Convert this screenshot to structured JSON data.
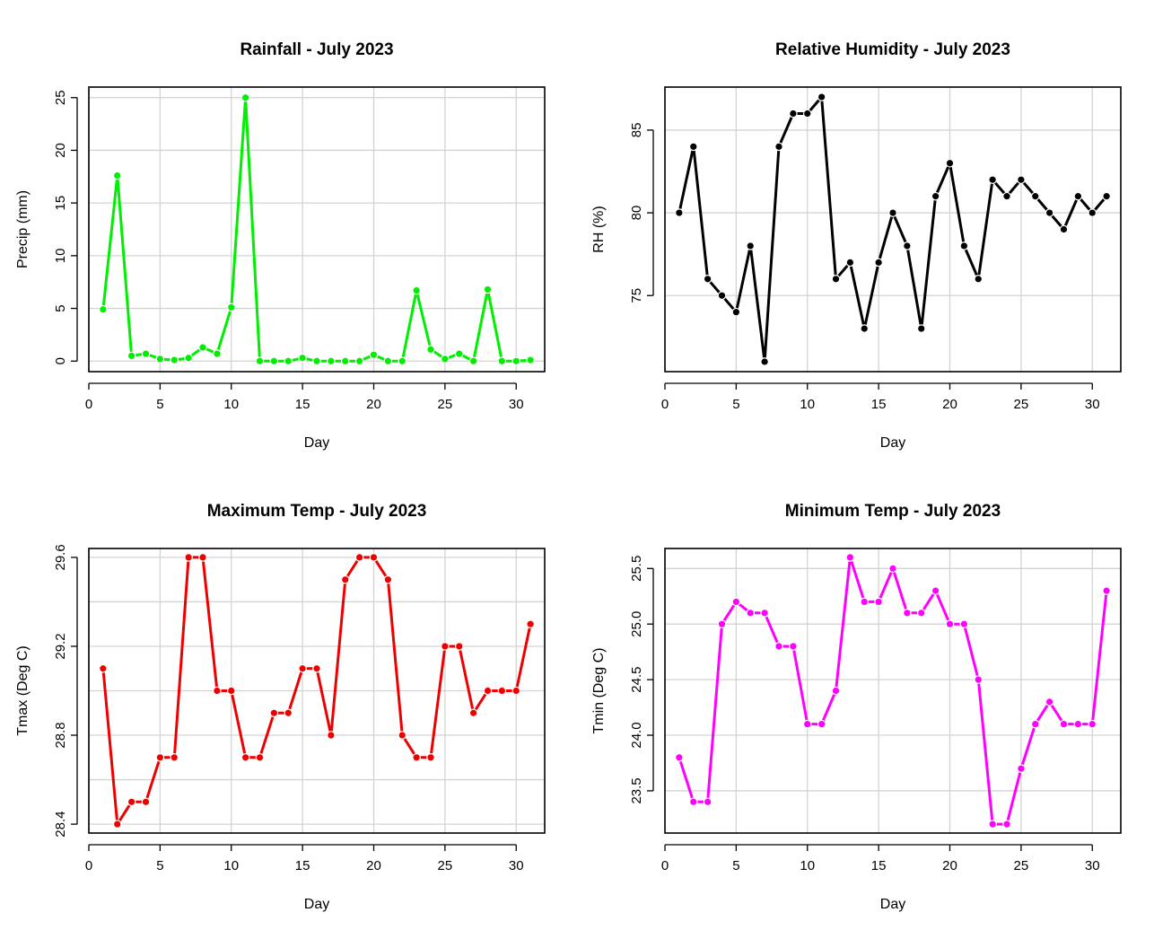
{
  "chart_data": [
    {
      "type": "line",
      "title": "Rainfall - July 2023",
      "xlabel": "Day",
      "ylabel": "Precip (mm)",
      "color": "#00ee00",
      "x": [
        1,
        2,
        3,
        4,
        5,
        6,
        7,
        8,
        9,
        10,
        11,
        12,
        13,
        14,
        15,
        16,
        17,
        18,
        19,
        20,
        21,
        22,
        23,
        24,
        25,
        26,
        27,
        28,
        29,
        30,
        31
      ],
      "values": [
        4.9,
        17.6,
        0.5,
        0.7,
        0.2,
        0.1,
        0.3,
        1.3,
        0.7,
        5.1,
        25.0,
        0.0,
        0.0,
        0.0,
        0.3,
        0.0,
        0.0,
        0.0,
        0.0,
        0.6,
        0.0,
        0.0,
        6.7,
        1.1,
        0.2,
        0.7,
        0.0,
        6.8,
        0.0,
        0.0,
        0.1
      ],
      "xlim": [
        0,
        32
      ],
      "ylim": [
        -1,
        26
      ],
      "xticks": [
        0,
        5,
        10,
        15,
        20,
        25,
        30
      ],
      "xtick_labels": [
        "0",
        "5",
        "10",
        "15",
        "20",
        "25",
        "30"
      ],
      "yticks": [
        0,
        5,
        10,
        15,
        20,
        25
      ],
      "ytick_labels": [
        "0",
        "5",
        "10",
        "15",
        "20",
        "25"
      ],
      "grid": true
    },
    {
      "type": "line",
      "title": "Relative Humidity - July 2023",
      "xlabel": "Day",
      "ylabel": "RH (%)",
      "color": "#000000",
      "x": [
        1,
        2,
        3,
        4,
        5,
        6,
        7,
        8,
        9,
        10,
        11,
        12,
        13,
        14,
        15,
        16,
        17,
        18,
        19,
        20,
        21,
        22,
        23,
        24,
        25,
        26,
        27,
        28,
        29,
        30,
        31
      ],
      "values": [
        80,
        84,
        76,
        75,
        74,
        78,
        71,
        84,
        86,
        86,
        87,
        76,
        77,
        73,
        77,
        80,
        78,
        73,
        81,
        83,
        78,
        76,
        82,
        81,
        82,
        81,
        80,
        79,
        81,
        80,
        81
      ],
      "xlim": [
        0,
        32
      ],
      "ylim": [
        70.4,
        87.6
      ],
      "xticks": [
        0,
        5,
        10,
        15,
        20,
        25,
        30
      ],
      "xtick_labels": [
        "0",
        "5",
        "10",
        "15",
        "20",
        "25",
        "30"
      ],
      "yticks": [
        75,
        80,
        85
      ],
      "ytick_labels": [
        "75",
        "80",
        "85"
      ],
      "grid": true
    },
    {
      "type": "line",
      "title": "Maximum Temp - July 2023",
      "xlabel": "Day",
      "ylabel": "Tmax (Deg C)",
      "color": "#ee0000",
      "x": [
        1,
        2,
        3,
        4,
        5,
        6,
        7,
        8,
        9,
        10,
        11,
        12,
        13,
        14,
        15,
        16,
        17,
        18,
        19,
        20,
        21,
        22,
        23,
        24,
        25,
        26,
        27,
        28,
        29,
        30,
        31
      ],
      "values": [
        29.1,
        28.4,
        28.5,
        28.5,
        28.7,
        28.7,
        29.6,
        29.6,
        29.0,
        29.0,
        28.7,
        28.7,
        28.9,
        28.9,
        29.1,
        29.1,
        28.8,
        29.5,
        29.6,
        29.6,
        29.5,
        28.8,
        28.7,
        28.7,
        29.2,
        29.2,
        28.9,
        29.0,
        29.0,
        29.0,
        29.3
      ],
      "xlim": [
        0,
        32
      ],
      "ylim": [
        28.36,
        29.64
      ],
      "xticks": [
        0,
        5,
        10,
        15,
        20,
        25,
        30
      ],
      "xtick_labels": [
        "0",
        "5",
        "10",
        "15",
        "20",
        "25",
        "30"
      ],
      "yticks": [
        28.4,
        28.8,
        29.2,
        29.6
      ],
      "ytick_labels": [
        "28.4",
        "28.8",
        "29.2",
        "29.6"
      ],
      "ygrid": [
        28.4,
        28.6,
        28.8,
        29.0,
        29.2,
        29.4,
        29.6
      ],
      "grid": true
    },
    {
      "type": "line",
      "title": "Minimum Temp - July 2023",
      "xlabel": "Day",
      "ylabel": "Tmin (Deg C)",
      "color": "#ff00ff",
      "x": [
        1,
        2,
        3,
        4,
        5,
        6,
        7,
        8,
        9,
        10,
        11,
        12,
        13,
        14,
        15,
        16,
        17,
        18,
        19,
        20,
        21,
        22,
        23,
        24,
        25,
        26,
        27,
        28,
        29,
        30,
        31
      ],
      "values": [
        23.8,
        23.4,
        23.4,
        25.0,
        25.2,
        25.1,
        25.1,
        24.8,
        24.8,
        24.1,
        24.1,
        24.4,
        25.6,
        25.2,
        25.2,
        25.5,
        25.1,
        25.1,
        25.3,
        25.0,
        25.0,
        24.5,
        23.2,
        23.2,
        23.7,
        24.1,
        24.3,
        24.1,
        24.1,
        24.1,
        25.3
      ],
      "xlim": [
        0,
        32
      ],
      "ylim": [
        23.12,
        25.68
      ],
      "xticks": [
        0,
        5,
        10,
        15,
        20,
        25,
        30
      ],
      "xtick_labels": [
        "0",
        "5",
        "10",
        "15",
        "20",
        "25",
        "30"
      ],
      "yticks": [
        23.5,
        24.0,
        24.5,
        25.0,
        25.5
      ],
      "ytick_labels": [
        "23.5",
        "24.0",
        "24.5",
        "25.0",
        "25.5"
      ],
      "grid": true
    }
  ]
}
